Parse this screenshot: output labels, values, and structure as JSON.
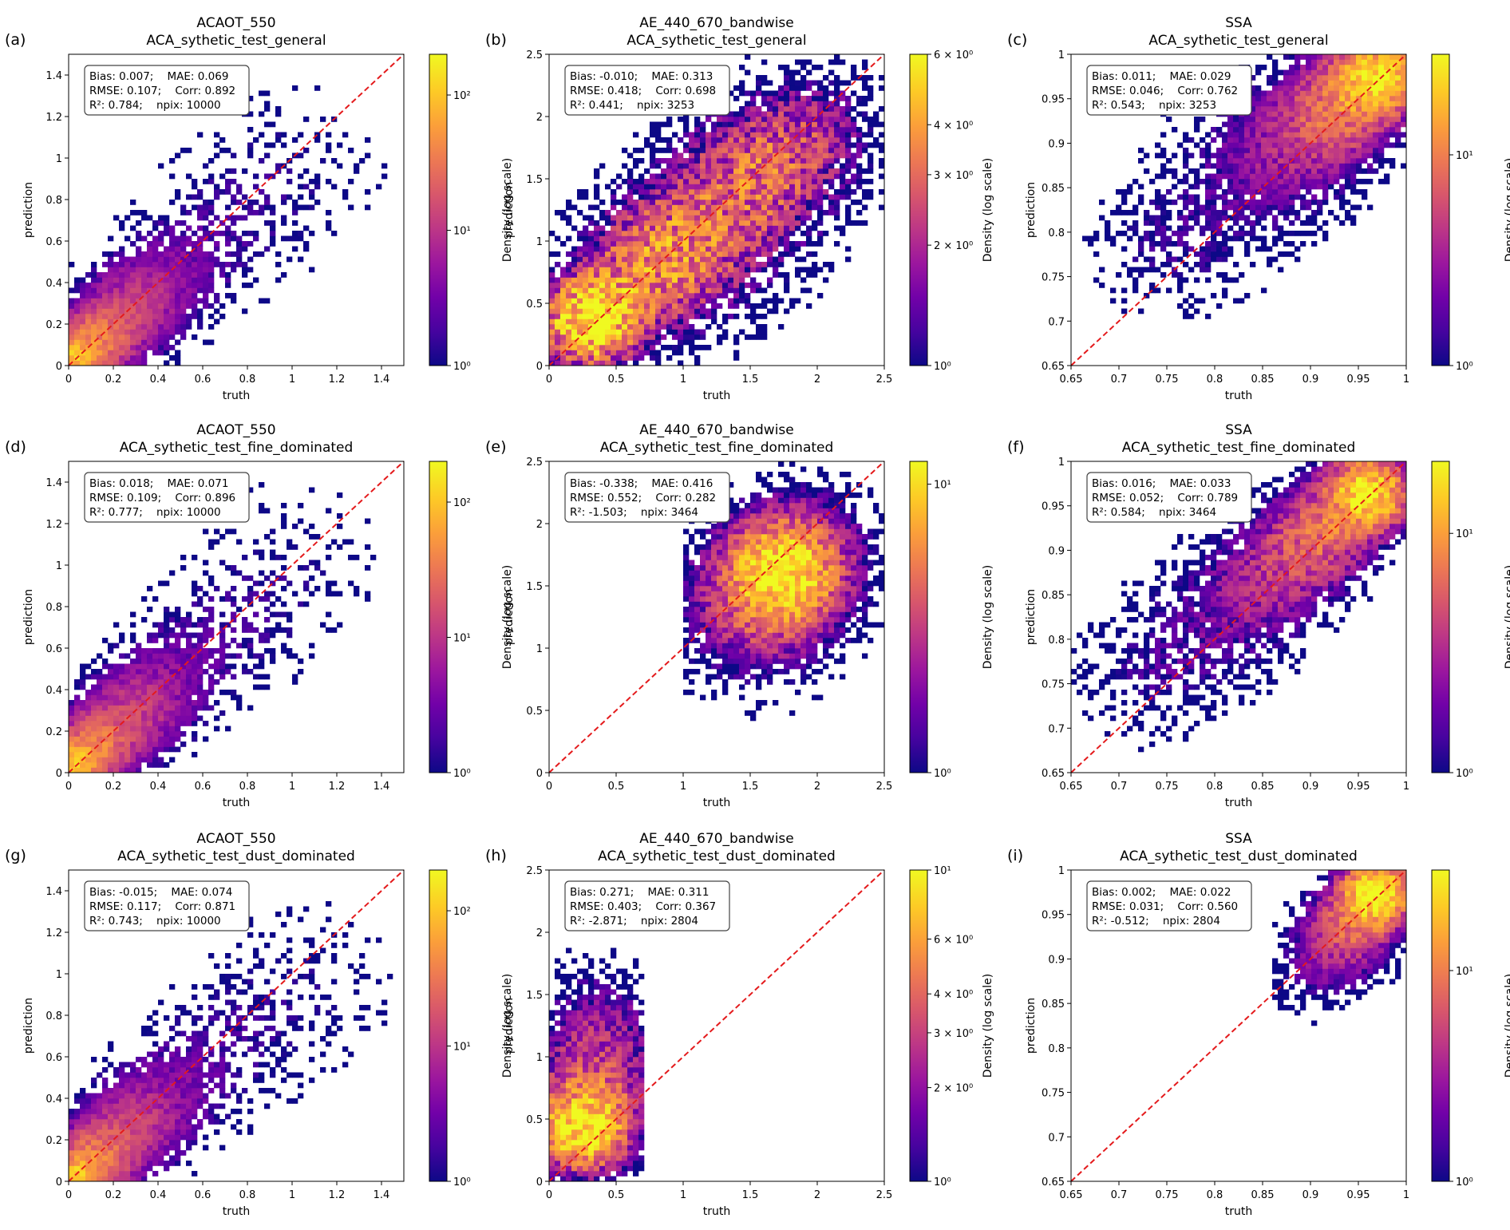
{
  "figure": {
    "background": "#ffffff",
    "colors": {
      "identity_line": "#e41a1c",
      "colormap": [
        "#0d0887",
        "#46039f",
        "#7201a8",
        "#9c179e",
        "#bd3786",
        "#d8576b",
        "#ed7953",
        "#fb9f3a",
        "#fdca26",
        "#f0f921"
      ]
    }
  },
  "chart_data": [
    {
      "type": "heatmap",
      "panel_label": "(a)",
      "title": "ACAOT_550",
      "subtitle": "ACA_sythetic_test_general",
      "xlabel": "truth",
      "ylabel": "prediction",
      "colorbar_label": "Density (log scale)",
      "xlim": [
        0,
        1.5
      ],
      "ylim": [
        0,
        1.5
      ],
      "xticks": [
        "0",
        "0.2",
        "0.4",
        "0.6",
        "0.8",
        "1",
        "1.2",
        "1.4"
      ],
      "yticks": [
        "0",
        "0.2",
        "0.4",
        "0.6",
        "0.8",
        "1",
        "1.2",
        "1.4"
      ],
      "colorbar_ticks": [
        {
          "value": 1,
          "label": "10⁰"
        },
        {
          "value": 10,
          "label": "10¹"
        },
        {
          "value": 100,
          "label": "10²"
        }
      ],
      "color_range": [
        1,
        200
      ],
      "stats": [
        "Bias: 0.007;    MAE: 0.069",
        "RMSE: 0.107;    Corr: 0.892",
        "R²: 0.784;    npix: 10000"
      ],
      "cloud": {
        "points": [
          [
            0.03,
            0.04,
            0.05,
            100
          ],
          [
            0.12,
            0.12,
            0.09,
            40
          ],
          [
            0.28,
            0.27,
            0.12,
            12
          ],
          [
            0.45,
            0.43,
            0.15,
            4
          ],
          [
            0.7,
            0.68,
            0.2,
            1.5
          ],
          [
            1.0,
            0.95,
            0.25,
            1
          ]
        ],
        "fill": 0.28,
        "seed": 11
      }
    },
    {
      "type": "heatmap",
      "panel_label": "(b)",
      "title": "AE_440_670_bandwise",
      "subtitle": "ACA_sythetic_test_general",
      "xlabel": "truth",
      "ylabel": "prediction",
      "colorbar_label": "Density (log scale)",
      "xlim": [
        0,
        2.5
      ],
      "ylim": [
        0,
        2.5
      ],
      "xticks": [
        "0",
        "0.5",
        "1",
        "1.5",
        "2",
        "2.5"
      ],
      "yticks": [
        "0",
        "0.5",
        "1",
        "1.5",
        "2",
        "2.5"
      ],
      "colorbar_ticks": [
        {
          "value": 1,
          "label": "10⁰"
        },
        {
          "value": 2,
          "label": "2 × 10⁰"
        },
        {
          "value": 3,
          "label": "3 × 10⁰"
        },
        {
          "value": 4,
          "label": "4 × 10⁰"
        },
        {
          "value": 6,
          "label": "6 × 10⁰"
        }
      ],
      "color_range": [
        1,
        6
      ],
      "stats": [
        "Bias: -0.010;    MAE: 0.313",
        "RMSE: 0.418;    Corr: 0.698",
        "R²: 0.441;    npix: 3253"
      ],
      "cloud": {
        "points": [
          [
            0.3,
            0.35,
            0.25,
            6
          ],
          [
            0.8,
            0.85,
            0.35,
            3
          ],
          [
            1.5,
            1.5,
            0.4,
            2.5
          ],
          [
            2.0,
            1.9,
            0.35,
            1.5
          ],
          [
            1.2,
            0.9,
            0.5,
            1
          ]
        ],
        "fill": 0.55,
        "seed": 23
      }
    },
    {
      "type": "heatmap",
      "panel_label": "(c)",
      "title": "SSA",
      "subtitle": "ACA_sythetic_test_general",
      "xlabel": "truth",
      "ylabel": "prediction",
      "colorbar_label": "Density (log scale)",
      "xlim": [
        0.65,
        1.0
      ],
      "ylim": [
        0.65,
        1.0
      ],
      "xticks": [
        "0.65",
        "0.7",
        "0.75",
        "0.8",
        "0.85",
        "0.9",
        "0.95",
        "1"
      ],
      "yticks": [
        "0.65",
        "0.7",
        "0.75",
        "0.8",
        "0.85",
        "0.9",
        "0.95",
        "1"
      ],
      "colorbar_ticks": [
        {
          "value": 1,
          "label": "10⁰"
        },
        {
          "value": 10,
          "label": "10¹"
        }
      ],
      "color_range": [
        1,
        30
      ],
      "stats": [
        "Bias: 0.011;    MAE: 0.029",
        "RMSE: 0.046;    Corr: 0.762",
        "R²: 0.543;    npix: 3253"
      ],
      "cloud": {
        "points": [
          [
            0.97,
            0.975,
            0.025,
            25
          ],
          [
            0.93,
            0.94,
            0.035,
            8
          ],
          [
            0.88,
            0.9,
            0.045,
            3
          ],
          [
            0.82,
            0.85,
            0.06,
            1.2
          ],
          [
            0.75,
            0.78,
            0.05,
            1
          ]
        ],
        "fill": 0.45,
        "seed": 37
      }
    },
    {
      "type": "heatmap",
      "panel_label": "(d)",
      "title": "ACAOT_550",
      "subtitle": "ACA_sythetic_test_fine_dominated",
      "xlabel": "truth",
      "ylabel": "prediction",
      "colorbar_label": "Density (log scale)",
      "xlim": [
        0,
        1.5
      ],
      "ylim": [
        0,
        1.5
      ],
      "xticks": [
        "0",
        "0.2",
        "0.4",
        "0.6",
        "0.8",
        "1",
        "1.2",
        "1.4"
      ],
      "yticks": [
        "0",
        "0.2",
        "0.4",
        "0.6",
        "0.8",
        "1",
        "1.2",
        "1.4"
      ],
      "colorbar_ticks": [
        {
          "value": 1,
          "label": "10⁰"
        },
        {
          "value": 10,
          "label": "10¹"
        },
        {
          "value": 100,
          "label": "10²"
        }
      ],
      "color_range": [
        1,
        200
      ],
      "stats": [
        "Bias: 0.018;    MAE: 0.071",
        "RMSE: 0.109;    Corr: 0.896",
        "R²: 0.777;    npix: 10000"
      ],
      "cloud": {
        "points": [
          [
            0.03,
            0.05,
            0.05,
            100
          ],
          [
            0.12,
            0.13,
            0.09,
            40
          ],
          [
            0.28,
            0.28,
            0.12,
            12
          ],
          [
            0.45,
            0.45,
            0.15,
            4
          ],
          [
            0.7,
            0.7,
            0.2,
            1.5
          ],
          [
            1.0,
            1.0,
            0.25,
            1
          ]
        ],
        "fill": 0.28,
        "seed": 41
      }
    },
    {
      "type": "heatmap",
      "panel_label": "(e)",
      "title": "AE_440_670_bandwise",
      "subtitle": "ACA_sythetic_test_fine_dominated",
      "xlabel": "truth",
      "ylabel": "prediction",
      "colorbar_label": "Density (log scale)",
      "xlim": [
        0,
        2.5
      ],
      "ylim": [
        0,
        2.5
      ],
      "xticks": [
        "0",
        "0.5",
        "1",
        "1.5",
        "2",
        "2.5"
      ],
      "yticks": [
        "0",
        "0.5",
        "1",
        "1.5",
        "2",
        "2.5"
      ],
      "colorbar_ticks": [
        {
          "value": 1,
          "label": "10⁰"
        },
        {
          "value": 10,
          "label": "10¹"
        }
      ],
      "color_range": [
        1,
        12
      ],
      "stats": [
        "Bias: -0.338;    MAE: 0.416",
        "RMSE: 0.552;    Corr: 0.282",
        "R²: -1.503;    npix: 3464"
      ],
      "cloud": {
        "points": [
          [
            1.75,
            1.6,
            0.25,
            8
          ],
          [
            1.6,
            1.45,
            0.35,
            3
          ],
          [
            1.9,
            1.8,
            0.35,
            2
          ],
          [
            1.5,
            1.2,
            0.45,
            1
          ]
        ],
        "fill": 0.55,
        "seed": 53,
        "xclip": [
          1.0,
          2.5
        ]
      }
    },
    {
      "type": "heatmap",
      "panel_label": "(f)",
      "title": "SSA",
      "subtitle": "ACA_sythetic_test_fine_dominated",
      "xlabel": "truth",
      "ylabel": "prediction",
      "colorbar_label": "Density (log scale)",
      "xlim": [
        0.65,
        1.0
      ],
      "ylim": [
        0.65,
        1.0
      ],
      "xticks": [
        "0.65",
        "0.7",
        "0.75",
        "0.8",
        "0.85",
        "0.9",
        "0.95",
        "1"
      ],
      "yticks": [
        "0.65",
        "0.7",
        "0.75",
        "0.8",
        "0.85",
        "0.9",
        "0.95",
        "1"
      ],
      "colorbar_ticks": [
        {
          "value": 1,
          "label": "10⁰"
        },
        {
          "value": 10,
          "label": "10¹"
        }
      ],
      "color_range": [
        1,
        20
      ],
      "stats": [
        "Bias: 0.016;    MAE: 0.033",
        "RMSE: 0.052;    Corr: 0.789",
        "R²: 0.584;    npix: 3464"
      ],
      "cloud": {
        "points": [
          [
            0.96,
            0.965,
            0.025,
            18
          ],
          [
            0.91,
            0.92,
            0.035,
            6
          ],
          [
            0.86,
            0.87,
            0.04,
            3
          ],
          [
            0.8,
            0.82,
            0.05,
            1.5
          ],
          [
            0.73,
            0.76,
            0.05,
            1
          ]
        ],
        "fill": 0.45,
        "seed": 67
      }
    },
    {
      "type": "heatmap",
      "panel_label": "(g)",
      "title": "ACAOT_550",
      "subtitle": "ACA_sythetic_test_dust_dominated",
      "xlabel": "truth",
      "ylabel": "prediction",
      "colorbar_label": "Density (log scale)",
      "xlim": [
        0,
        1.5
      ],
      "ylim": [
        0,
        1.5
      ],
      "xticks": [
        "0",
        "0.2",
        "0.4",
        "0.6",
        "0.8",
        "1",
        "1.2",
        "1.4"
      ],
      "yticks": [
        "0",
        "0.2",
        "0.4",
        "0.6",
        "0.8",
        "1",
        "1.2",
        "1.4"
      ],
      "colorbar_ticks": [
        {
          "value": 1,
          "label": "10⁰"
        },
        {
          "value": 10,
          "label": "10¹"
        },
        {
          "value": 100,
          "label": "10²"
        }
      ],
      "color_range": [
        1,
        200
      ],
      "stats": [
        "Bias: -0.015;    MAE: 0.074",
        "RMSE: 0.117;    Corr: 0.871",
        "R²: 0.743;    npix: 10000"
      ],
      "cloud": {
        "points": [
          [
            0.03,
            0.03,
            0.05,
            100
          ],
          [
            0.12,
            0.11,
            0.09,
            40
          ],
          [
            0.28,
            0.26,
            0.12,
            12
          ],
          [
            0.45,
            0.42,
            0.15,
            4
          ],
          [
            0.7,
            0.66,
            0.2,
            1.5
          ],
          [
            1.05,
            0.95,
            0.25,
            1
          ]
        ],
        "fill": 0.28,
        "seed": 79
      }
    },
    {
      "type": "heatmap",
      "panel_label": "(h)",
      "title": "AE_440_670_bandwise",
      "subtitle": "ACA_sythetic_test_dust_dominated",
      "xlabel": "truth",
      "ylabel": "prediction",
      "colorbar_label": "Density (log scale)",
      "xlim": [
        0,
        2.5
      ],
      "ylim": [
        0,
        2.5
      ],
      "xticks": [
        "0",
        "0.5",
        "1",
        "1.5",
        "2",
        "2.5"
      ],
      "yticks": [
        "0",
        "0.5",
        "1",
        "1.5",
        "2",
        "2.5"
      ],
      "colorbar_ticks": [
        {
          "value": 1,
          "label": "10⁰"
        },
        {
          "value": 2,
          "label": "2 × 10⁰"
        },
        {
          "value": 3,
          "label": "3 × 10⁰"
        },
        {
          "value": 4,
          "label": "4 × 10⁰"
        },
        {
          "value": 6,
          "label": "6 × 10⁰"
        },
        {
          "value": 10,
          "label": "10¹"
        }
      ],
      "color_range": [
        1,
        10
      ],
      "stats": [
        "Bias: 0.271;    MAE: 0.311",
        "RMSE: 0.403;    Corr: 0.367",
        "R²: -2.871;    npix: 2804"
      ],
      "cloud": {
        "points": [
          [
            0.25,
            0.4,
            0.2,
            8
          ],
          [
            0.3,
            0.6,
            0.3,
            3
          ],
          [
            0.35,
            1.0,
            0.35,
            1.5
          ],
          [
            0.4,
            1.4,
            0.3,
            1
          ]
        ],
        "fill": 0.55,
        "seed": 83,
        "xclip": [
          0.0,
          0.7
        ]
      }
    },
    {
      "type": "heatmap",
      "panel_label": "(i)",
      "title": "SSA",
      "subtitle": "ACA_sythetic_test_dust_dominated",
      "xlabel": "truth",
      "ylabel": "prediction",
      "colorbar_label": "Density (log scale)",
      "xlim": [
        0.65,
        1.0
      ],
      "ylim": [
        0.65,
        1.0
      ],
      "xticks": [
        "0.65",
        "0.7",
        "0.75",
        "0.8",
        "0.85",
        "0.9",
        "0.95",
        "1"
      ],
      "yticks": [
        "0.65",
        "0.7",
        "0.75",
        "0.8",
        "0.85",
        "0.9",
        "0.95",
        "1"
      ],
      "colorbar_ticks": [
        {
          "value": 1,
          "label": "10⁰"
        },
        {
          "value": 10,
          "label": "10¹"
        }
      ],
      "color_range": [
        1,
        30
      ],
      "stats": [
        "Bias: 0.002;    MAE: 0.022",
        "RMSE: 0.031;    Corr: 0.560",
        "R²: -0.512;    npix: 2804"
      ],
      "cloud": {
        "points": [
          [
            0.97,
            0.975,
            0.02,
            28
          ],
          [
            0.95,
            0.95,
            0.025,
            8
          ],
          [
            0.93,
            0.92,
            0.03,
            3
          ],
          [
            0.91,
            0.89,
            0.035,
            1.2
          ]
        ],
        "fill": 0.5,
        "seed": 97,
        "xclip": [
          0.86,
          1.0
        ]
      }
    }
  ]
}
